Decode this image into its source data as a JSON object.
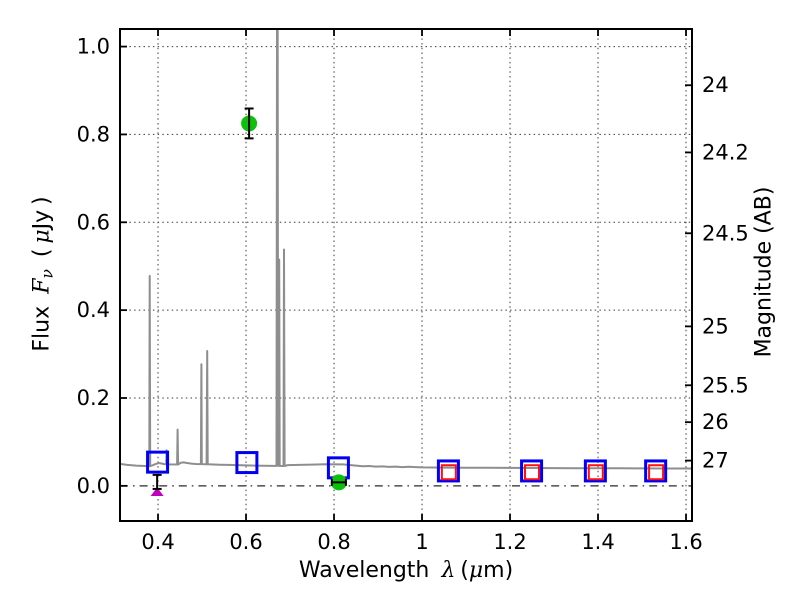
{
  "figure": {
    "background": "#ffffff",
    "frame_color": "#000000"
  },
  "labels": {
    "x": {
      "word": "Wavelength",
      "lambda": "λ",
      "open": "(",
      "mu": "μ",
      "close": "m)"
    },
    "y_left": {
      "word": "Flux",
      "sym": "F",
      "sub": "ν",
      "open": "(",
      "mu": "μ",
      "unit": "Jy",
      "close": ")"
    },
    "y_right": {
      "text": "Magnitude (AB)"
    }
  },
  "chart_data": {
    "type": "line+scatter",
    "title": "",
    "xlabel": "Wavelength λ (μm)",
    "ylabel_left": "Flux Fν ( μJy )",
    "ylabel_right": "Magnitude (AB)",
    "xlim": [
      0.3136,
      1.6136
    ],
    "ylim": [
      -0.08,
      1.04
    ],
    "grid": {
      "shown": true,
      "style": "dotted",
      "color": "#3c3c3c",
      "zero_line_style": "dash-dot"
    },
    "x_ticks": {
      "values": [
        0.4,
        0.6,
        0.8,
        1.0,
        1.2,
        1.4,
        1.6
      ],
      "labels": [
        "0.4",
        "0.6",
        "0.8",
        "1",
        "1.2",
        "1.4",
        "1.6"
      ]
    },
    "y_ticks_left": {
      "values": [
        0.0,
        0.2,
        0.4,
        0.6,
        0.8,
        1.0
      ],
      "labels": [
        "0.0",
        "0.2",
        "0.4",
        "0.6",
        "0.8",
        "1.0"
      ]
    },
    "y_ticks_right": {
      "labels": [
        "24",
        "24.2",
        "24.5",
        "25",
        "25.5",
        "26",
        "27"
      ],
      "flux_values": [
        0.912,
        0.759,
        0.575,
        0.363,
        0.229,
        0.145,
        0.0575
      ],
      "note": "AB magnitude axis, m = 23.9 - 2.5 log10(F/uJy)"
    },
    "series": [
      {
        "name": "model-spectrum",
        "kind": "line",
        "color": "#8e8e8e",
        "width": 2,
        "points": [
          [
            0.3136,
            0.05
          ],
          [
            0.33,
            0.0478
          ],
          [
            0.35,
            0.0462
          ],
          [
            0.37,
            0.0452
          ],
          [
            0.379,
            0.045
          ],
          [
            0.3803,
            0.045
          ],
          [
            0.3812,
            0.478
          ],
          [
            0.3822,
            0.045
          ],
          [
            0.388,
            0.0468
          ],
          [
            0.395,
            0.05
          ],
          [
            0.402,
            0.052
          ],
          [
            0.408,
            0.0508
          ],
          [
            0.414,
            0.0495
          ],
          [
            0.4185,
            0.0492
          ],
          [
            0.4196,
            0.081
          ],
          [
            0.4207,
            0.0492
          ],
          [
            0.428,
            0.0488
          ],
          [
            0.4434,
            0.0487
          ],
          [
            0.4445,
            0.128
          ],
          [
            0.4456,
            0.0487
          ],
          [
            0.452,
            0.0528
          ],
          [
            0.458,
            0.0535
          ],
          [
            0.466,
            0.052
          ],
          [
            0.476,
            0.0506
          ],
          [
            0.486,
            0.0498
          ],
          [
            0.4974,
            0.0495
          ],
          [
            0.4985,
            0.277
          ],
          [
            0.4996,
            0.0495
          ],
          [
            0.5104,
            0.049
          ],
          [
            0.5117,
            0.307
          ],
          [
            0.513,
            0.049
          ],
          [
            0.52,
            0.0488
          ],
          [
            0.54,
            0.0482
          ],
          [
            0.56,
            0.0478
          ],
          [
            0.58,
            0.0472
          ],
          [
            0.6,
            0.0466
          ],
          [
            0.62,
            0.0462
          ],
          [
            0.64,
            0.0458
          ],
          [
            0.66,
            0.0455
          ],
          [
            0.6693,
            0.0455
          ],
          [
            0.6706,
            1.2
          ],
          [
            0.6718,
            1.2
          ],
          [
            0.673,
            0.0455
          ],
          [
            0.6745,
            0.0455
          ],
          [
            0.6755,
            0.515
          ],
          [
            0.6765,
            0.0455
          ],
          [
            0.6852,
            0.0452
          ],
          [
            0.6864,
            0.538
          ],
          [
            0.6876,
            0.0452
          ],
          [
            0.695,
            0.0472
          ],
          [
            0.72,
            0.0478
          ],
          [
            0.75,
            0.0485
          ],
          [
            0.78,
            0.049
          ],
          [
            0.82,
            0.0488
          ],
          [
            0.85,
            0.0462
          ],
          [
            0.865,
            0.0448
          ],
          [
            0.88,
            0.0452
          ],
          [
            0.895,
            0.0438
          ],
          [
            0.91,
            0.0444
          ],
          [
            0.925,
            0.0432
          ],
          [
            0.94,
            0.0438
          ],
          [
            0.955,
            0.0428
          ],
          [
            0.97,
            0.0434
          ],
          [
            0.985,
            0.0426
          ],
          [
            1.0,
            0.042
          ],
          [
            1.05,
            0.0416
          ],
          [
            1.1,
            0.0412
          ],
          [
            1.15,
            0.041
          ],
          [
            1.2,
            0.0408
          ],
          [
            1.25,
            0.0406
          ],
          [
            1.3,
            0.0404
          ],
          [
            1.35,
            0.0402
          ],
          [
            1.4,
            0.04
          ],
          [
            1.45,
            0.0399
          ],
          [
            1.5,
            0.0398
          ],
          [
            1.55,
            0.0396
          ],
          [
            1.6136,
            0.0395
          ]
        ]
      },
      {
        "name": "model-photometry-broadband-blue",
        "kind": "scatter",
        "marker": "open-square",
        "color": "#0000f5",
        "size": 20,
        "stroke": 3,
        "points": [
          [
            0.399,
            0.054
          ],
          [
            0.602,
            0.053
          ],
          [
            0.81,
            0.041
          ],
          [
            1.06,
            0.034
          ],
          [
            1.249,
            0.034
          ],
          [
            1.394,
            0.034
          ],
          [
            1.531,
            0.034
          ]
        ]
      },
      {
        "name": "model-photometry-narrowband-red",
        "kind": "scatter",
        "marker": "open-square",
        "color": "#ff0e0e",
        "size": 14,
        "stroke": 2,
        "points": [
          [
            1.061,
            0.031
          ],
          [
            1.25,
            0.031
          ],
          [
            1.395,
            0.031
          ],
          [
            1.532,
            0.031
          ]
        ]
      },
      {
        "name": "observed-flux-points",
        "kind": "scatter",
        "marker": "circle",
        "color": "#0cc00c",
        "size": 16,
        "points": [
          [
            0.607,
            0.825
          ],
          [
            0.811,
            0.008
          ]
        ],
        "error_bars": [
          {
            "x": 0.607,
            "y": 0.825,
            "yerr": 0.034
          },
          {
            "x": 0.811,
            "y": 0.008,
            "xerr": 0.016
          }
        ],
        "error_color": "#000000"
      },
      {
        "name": "upper-limit-point",
        "kind": "scatter",
        "marker": "triangle-up",
        "color": "#bf00bf",
        "size": 13,
        "points": [
          [
            0.398,
            -0.014
          ]
        ],
        "error_bars": [
          {
            "x": 0.398,
            "y": 0.009,
            "yerr": 0.016
          }
        ],
        "error_color": "#000000"
      }
    ]
  }
}
